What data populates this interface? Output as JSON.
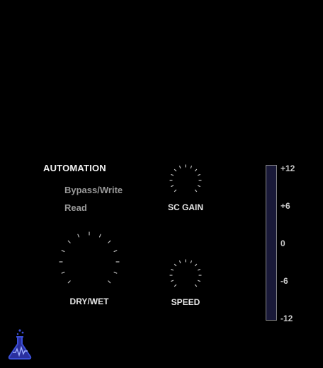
{
  "automation": {
    "title": "AUTOMATION",
    "options": [
      "Bypass/Write",
      "Read"
    ]
  },
  "knobs": {
    "sc_gain": {
      "label": "SC GAIN"
    },
    "dry_wet": {
      "label": "DRY/WET"
    },
    "speed": {
      "label": "SPEED"
    }
  },
  "meter": {
    "ticks": [
      "+12",
      "+6",
      "0",
      "-6",
      "-12"
    ],
    "fill_color": "#191938"
  },
  "logo": {
    "icon": "flask-icon",
    "color": "#3b4fd6"
  }
}
